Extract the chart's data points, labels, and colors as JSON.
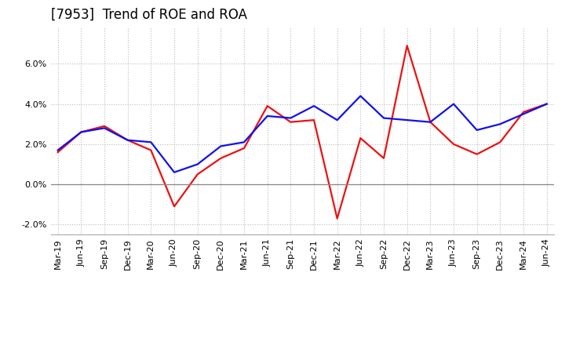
{
  "title": "[7953]  Trend of ROE and ROA",
  "x_labels": [
    "Mar-19",
    "Jun-19",
    "Sep-19",
    "Dec-19",
    "Mar-20",
    "Jun-20",
    "Sep-20",
    "Dec-20",
    "Mar-21",
    "Jun-21",
    "Sep-21",
    "Dec-21",
    "Mar-22",
    "Jun-22",
    "Sep-22",
    "Dec-22",
    "Mar-23",
    "Jun-23",
    "Sep-23",
    "Dec-23",
    "Mar-24",
    "Jun-24"
  ],
  "roe": [
    1.6,
    2.6,
    2.9,
    2.2,
    1.7,
    -1.1,
    0.5,
    1.3,
    1.8,
    3.9,
    3.1,
    3.2,
    -1.7,
    2.3,
    1.3,
    6.9,
    3.1,
    2.0,
    1.5,
    2.1,
    3.6,
    4.0
  ],
  "roa": [
    1.7,
    2.6,
    2.8,
    2.2,
    2.1,
    0.6,
    1.0,
    1.9,
    2.1,
    3.4,
    3.3,
    3.9,
    3.2,
    4.4,
    3.3,
    3.2,
    3.1,
    4.0,
    2.7,
    3.0,
    3.5,
    4.0
  ],
  "roe_color": "#ee1111",
  "roa_color": "#1111ee",
  "background_color": "#ffffff",
  "plot_bg_color": "#ffffff",
  "grid_color": "#bbbbbb",
  "ylim": [
    -2.5,
    7.8
  ],
  "yticks": [
    -2.0,
    0.0,
    2.0,
    4.0,
    6.0
  ],
  "title_fontsize": 12,
  "tick_fontsize": 8,
  "legend_fontsize": 9,
  "line_width": 1.6
}
